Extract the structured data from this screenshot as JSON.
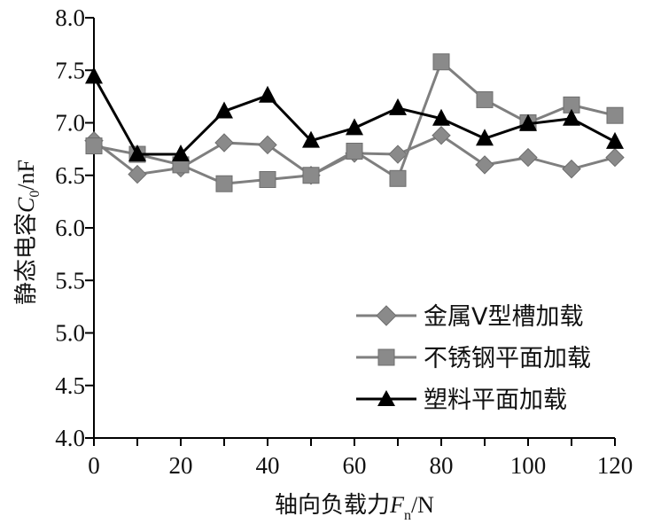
{
  "chart_data": {
    "type": "line",
    "ylabel_prefix": "静态电容",
    "ylabel_symbol": "C",
    "ylabel_subscript": "0",
    "ylabel_unit": "/nF",
    "xlabel_prefix": "轴向负载力",
    "xlabel_symbol": "F",
    "xlabel_subscript": "n",
    "xlabel_unit": "/N",
    "xlim": [
      0,
      120
    ],
    "ylim": [
      4.0,
      8.0
    ],
    "xticks": [
      "0",
      "20",
      "40",
      "60",
      "80",
      "100",
      "120"
    ],
    "xtick_values": [
      0,
      20,
      40,
      60,
      80,
      100,
      120
    ],
    "yticks": [
      "4.0",
      "4.5",
      "5.0",
      "5.5",
      "6.0",
      "6.5",
      "7.0",
      "7.5",
      "8.0"
    ],
    "ytick_values": [
      4.0,
      4.5,
      5.0,
      5.5,
      6.0,
      6.5,
      7.0,
      7.5,
      8.0
    ],
    "grid": false,
    "legend_position": "bottom-right",
    "x": [
      0,
      10,
      20,
      30,
      40,
      50,
      60,
      70,
      80,
      90,
      100,
      110,
      120
    ],
    "series": [
      {
        "name": "金属V型槽加载",
        "marker": "diamond",
        "color": "#7f7f7f",
        "values": [
          6.83,
          6.51,
          6.57,
          6.81,
          6.79,
          6.5,
          6.71,
          6.7,
          6.88,
          6.6,
          6.67,
          6.56,
          6.67
        ]
      },
      {
        "name": "不锈钢平面加载",
        "marker": "square",
        "color": "#7f7f7f",
        "values": [
          6.78,
          6.7,
          6.6,
          6.42,
          6.46,
          6.5,
          6.73,
          6.47,
          7.58,
          7.22,
          7.0,
          7.17,
          7.07
        ]
      },
      {
        "name": "塑料平面加载",
        "marker": "triangle",
        "color": "#000000",
        "values": [
          7.44,
          6.7,
          6.7,
          7.11,
          7.26,
          6.83,
          6.95,
          7.14,
          7.04,
          6.85,
          6.99,
          7.04,
          6.82
        ]
      }
    ]
  }
}
